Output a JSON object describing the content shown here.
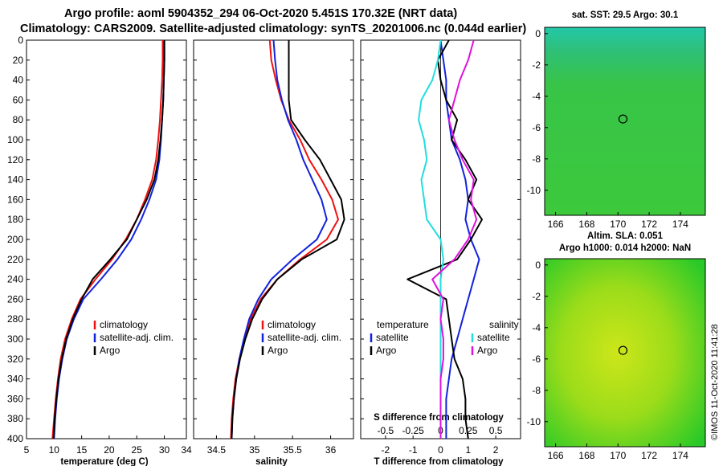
{
  "title_line1": "Argo profile: aoml 5904352_294 06-Oct-2020 5.451S 170.32E (NRT data)",
  "title_line2": "Climatology: CARS2009. Satellite-adjusted climatology: synTS_20201006.nc (0.044d earlier)",
  "colors": {
    "climatology": "#ee1111",
    "satellite": "#1122dd",
    "argo": "#000000",
    "sat_T": "#22dddd",
    "sal_argo": "#dd11dd"
  },
  "chart_data": [
    {
      "type": "line",
      "name": "temperature-profile",
      "xlabel": "temperature (deg C)",
      "ylabel": "",
      "xlim": [
        5,
        34
      ],
      "ylim": [
        400,
        0
      ],
      "x_ticks": [
        "5",
        "10",
        "15",
        "20",
        "25",
        "30",
        "34"
      ],
      "x_tick_values": [
        5,
        10,
        15,
        20,
        25,
        30,
        34
      ],
      "y_ticks": [
        "0",
        "20",
        "40",
        "60",
        "80",
        "100",
        "120",
        "140",
        "160",
        "180",
        "200",
        "220",
        "240",
        "260",
        "280",
        "300",
        "320",
        "340",
        "360",
        "380",
        "400"
      ],
      "legend": [
        "climatology",
        "satellite-adj. clim.",
        "Argo"
      ],
      "series": [
        {
          "name": "climatology",
          "color_key": "climatology",
          "x": [
            29.7,
            29.7,
            29.6,
            29.4,
            29.2,
            28.9,
            28.5,
            27.8,
            26.5,
            25.0,
            23.0,
            20.5,
            17.5,
            14.8,
            13.2,
            12.0,
            11.2,
            10.7,
            10.3,
            10.0,
            9.7
          ],
          "depth": [
            0,
            20,
            40,
            60,
            80,
            100,
            120,
            140,
            160,
            180,
            200,
            220,
            240,
            260,
            280,
            300,
            320,
            340,
            360,
            380,
            400
          ]
        },
        {
          "name": "satellite-adj. clim.",
          "color_key": "satellite",
          "x": [
            30.0,
            30.0,
            29.9,
            29.8,
            29.6,
            29.4,
            29.1,
            28.5,
            27.3,
            25.8,
            24.0,
            21.5,
            18.5,
            15.3,
            13.6,
            12.3,
            11.5,
            10.9,
            10.5,
            10.2,
            10.0
          ],
          "depth": [
            0,
            20,
            40,
            60,
            80,
            100,
            120,
            140,
            160,
            180,
            200,
            220,
            240,
            260,
            280,
            300,
            320,
            340,
            360,
            380,
            400
          ]
        },
        {
          "name": "Argo",
          "color_key": "argo",
          "x": [
            30.0,
            30.0,
            29.9,
            29.8,
            29.6,
            29.3,
            28.9,
            28.2,
            26.8,
            25.0,
            23.2,
            20.2,
            17.0,
            15.0,
            13.4,
            12.2,
            11.4,
            10.8,
            10.4,
            10.1,
            9.9
          ],
          "depth": [
            0,
            20,
            40,
            60,
            80,
            100,
            120,
            140,
            160,
            180,
            200,
            220,
            240,
            260,
            280,
            300,
            320,
            340,
            360,
            380,
            400
          ]
        }
      ]
    },
    {
      "type": "line",
      "name": "salinity-profile",
      "xlabel": "salinity",
      "xlim": [
        34.2,
        36.3
      ],
      "ylim": [
        400,
        0
      ],
      "x_ticks": [
        "34.5",
        "35",
        "35.5",
        "36"
      ],
      "x_tick_values": [
        34.5,
        35,
        35.5,
        36
      ],
      "legend": [
        "climatology",
        "satellite-adj. clim.",
        "Argo"
      ],
      "series": [
        {
          "name": "climatology",
          "color_key": "climatology",
          "x": [
            35.2,
            35.22,
            35.28,
            35.35,
            35.45,
            35.6,
            35.72,
            35.88,
            36.02,
            36.1,
            35.95,
            35.6,
            35.3,
            35.08,
            34.95,
            34.87,
            34.8,
            34.75,
            34.72,
            34.7,
            34.69
          ],
          "depth": [
            0,
            20,
            40,
            60,
            80,
            100,
            120,
            140,
            160,
            180,
            200,
            220,
            240,
            260,
            280,
            300,
            320,
            340,
            360,
            380,
            400
          ]
        },
        {
          "name": "satellite-adj. clim.",
          "color_key": "satellite",
          "x": [
            35.25,
            35.27,
            35.3,
            35.36,
            35.44,
            35.55,
            35.64,
            35.76,
            35.88,
            35.95,
            35.82,
            35.5,
            35.22,
            35.05,
            34.93,
            34.86,
            34.8,
            34.76,
            34.73,
            34.71,
            34.7
          ],
          "depth": [
            0,
            20,
            40,
            60,
            80,
            100,
            120,
            140,
            160,
            180,
            200,
            220,
            240,
            260,
            280,
            300,
            320,
            340,
            360,
            380,
            400
          ]
        },
        {
          "name": "Argo",
          "color_key": "argo",
          "x": [
            35.45,
            35.45,
            35.45,
            35.45,
            35.48,
            35.66,
            35.86,
            36.0,
            36.14,
            36.18,
            36.08,
            35.62,
            35.3,
            35.1,
            34.97,
            34.88,
            34.81,
            34.76,
            34.73,
            34.71,
            34.7
          ],
          "depth": [
            0,
            20,
            40,
            60,
            80,
            100,
            120,
            140,
            160,
            180,
            200,
            220,
            240,
            260,
            280,
            300,
            320,
            340,
            360,
            380,
            400
          ]
        }
      ]
    },
    {
      "type": "line",
      "name": "difference-profile",
      "xlabel": "T difference from climatology",
      "top_axis_label": "S difference from climatology",
      "xlim": [
        -2.9,
        2.9
      ],
      "ylim": [
        400,
        0
      ],
      "x_ticks": [
        "-2",
        "-1",
        "0",
        "1",
        "2"
      ],
      "x_tick_values": [
        -2,
        -1,
        0,
        1,
        2
      ],
      "top_ticks": [
        "-0.5",
        "-0.25",
        "0",
        "0.25",
        "0.5"
      ],
      "top_tick_values": [
        -0.5,
        -0.25,
        0,
        0.25,
        0.5
      ],
      "legend_left_title": "temperature",
      "legend_right_title": "salinity",
      "legend_left": [
        "satellite",
        "Argo"
      ],
      "legend_right": [
        "satellite",
        "Argo"
      ],
      "series": [
        {
          "name": "temperature satellite",
          "color_key": "satellite",
          "x": [
            0.0,
            0.1,
            0.2,
            0.2,
            0.3,
            0.4,
            0.7,
            0.9,
            1.0,
            0.9,
            1.1,
            1.4,
            1.2,
            1.0,
            0.8,
            0.6,
            0.4,
            0.3,
            0.2,
            0.2,
            0.2
          ],
          "depth": [
            0,
            20,
            40,
            60,
            80,
            100,
            120,
            140,
            160,
            180,
            200,
            220,
            240,
            260,
            280,
            300,
            320,
            340,
            360,
            380,
            400
          ]
        },
        {
          "name": "temperature Argo",
          "color_key": "argo",
          "x": [
            0.3,
            -0.1,
            0.0,
            0.2,
            0.6,
            0.4,
            0.9,
            1.3,
            1.0,
            1.5,
            1.1,
            0.6,
            -1.2,
            0.2,
            0.3,
            0.4,
            0.5,
            0.8,
            0.9,
            0.9,
            1.0
          ],
          "depth": [
            0,
            20,
            40,
            60,
            80,
            100,
            120,
            140,
            160,
            180,
            200,
            220,
            240,
            260,
            280,
            300,
            320,
            340,
            360,
            380,
            400
          ]
        },
        {
          "name": "salinity satellite",
          "color_key": "sat_T",
          "x": [
            0.0,
            -0.1,
            -0.3,
            -0.7,
            -0.8,
            -0.6,
            -0.5,
            -0.7,
            -0.6,
            -0.5,
            0.0,
            0.1,
            0.0,
            0.0,
            0.0,
            0.0,
            0.0,
            0.0,
            0.0,
            0.0,
            0.0
          ],
          "depth": [
            0,
            20,
            40,
            60,
            80,
            100,
            120,
            140,
            160,
            180,
            200,
            220,
            240,
            260,
            280,
            300,
            320,
            340,
            360,
            380,
            400
          ]
        },
        {
          "name": "salinity Argo",
          "color_key": "sal_argo",
          "x": [
            1.2,
            1.0,
            0.7,
            0.5,
            0.3,
            0.5,
            0.8,
            1.2,
            1.1,
            1.3,
            1.0,
            0.5,
            -0.3,
            0.1,
            0.0,
            0.1,
            0.1,
            0.0,
            0.0,
            0.0,
            0.0
          ],
          "depth": [
            0,
            20,
            40,
            60,
            80,
            100,
            120,
            140,
            160,
            180,
            200,
            220,
            240,
            260,
            280,
            300,
            320,
            340,
            360,
            380,
            400
          ]
        }
      ]
    },
    {
      "type": "heatmap",
      "name": "sst-map",
      "title": "sat. SST: 29.5 Argo: 30.1",
      "x_ticks": [
        "166",
        "168",
        "170",
        "172",
        "174"
      ],
      "x_tick_values": [
        166,
        168,
        170,
        172,
        174
      ],
      "y_ticks": [
        "0",
        "-2",
        "-4",
        "-6",
        "-8",
        "-10"
      ],
      "y_tick_values": [
        0,
        -2,
        -4,
        -6,
        -8,
        -10
      ],
      "xlim": [
        165.3,
        175.6
      ],
      "ylim": [
        -11.6,
        0.4
      ],
      "marker": {
        "lon": 170.32,
        "lat": -5.451
      }
    },
    {
      "type": "heatmap",
      "name": "sla-map",
      "title_line1": "Altim. SLA: 0.051",
      "title_line2": "Argo h1000: 0.014 h2000: NaN",
      "x_ticks": [
        "166",
        "168",
        "170",
        "172",
        "174"
      ],
      "x_tick_values": [
        166,
        168,
        170,
        172,
        174
      ],
      "y_ticks": [
        "0",
        "-2",
        "-4",
        "-6",
        "-8",
        "-10"
      ],
      "y_tick_values": [
        0,
        -2,
        -4,
        -6,
        -8,
        -10
      ],
      "xlim": [
        165.3,
        175.6
      ],
      "ylim": [
        -11.6,
        0.4
      ],
      "marker": {
        "lon": 170.32,
        "lat": -5.451
      }
    }
  ],
  "watermark": "©IMOS 11-Oct-2020 11:41:28"
}
